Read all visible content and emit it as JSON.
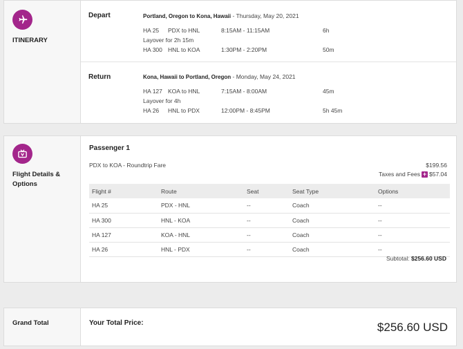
{
  "itinerary": {
    "label": "ITINERARY",
    "depart": {
      "title": "Depart",
      "route": "Portland, Oregon to Kona, Hawaii",
      "date": "Thursday, May 20, 2021",
      "flights": [
        {
          "code": "HA 25",
          "route": "PDX to HNL",
          "time": "8:15AM - 11:15AM",
          "duration": "6h"
        },
        {
          "code": "HA 300",
          "route": "HNL to KOA",
          "time": "1:30PM - 2:20PM",
          "duration": "50m"
        }
      ],
      "layover": "Layover for 2h 15m"
    },
    "return": {
      "title": "Return",
      "route": "Kona, Hawaii to Portland, Oregon",
      "date": "Monday, May 24, 2021",
      "flights": [
        {
          "code": "HA 127",
          "route": "KOA to HNL",
          "time": "7:15AM - 8:00AM",
          "duration": "45m"
        },
        {
          "code": "HA 26",
          "route": "HNL to PDX",
          "time": "12:00PM - 8:45PM",
          "duration": "5h 45m"
        }
      ],
      "layover": "Layover for 4h"
    }
  },
  "details": {
    "label_line1": "Flight Details &",
    "label_line2": "Options",
    "passenger": "Passenger 1",
    "fare_label": "PDX to KOA - Roundtrip Fare",
    "fare_amount": "$199.56",
    "taxes_label": "Taxes and Fees",
    "taxes_amount": "$57.04",
    "columns": [
      "Flight #",
      "Route",
      "Seat",
      "Seat Type",
      "Options"
    ],
    "rows": [
      [
        "HA 25",
        "PDX - HNL",
        "--",
        "Coach",
        "--"
      ],
      [
        "HA 300",
        "HNL - KOA",
        "--",
        "Coach",
        "--"
      ],
      [
        "HA 127",
        "KOA - HNL",
        "--",
        "Coach",
        "--"
      ],
      [
        "HA 26",
        "HNL - PDX",
        "--",
        "Coach",
        "--"
      ]
    ],
    "subtotal_label": "Subtotal:",
    "subtotal_amount": "$256.60 USD"
  },
  "grand_total": {
    "label": "Grand Total",
    "your_total_label": "Your Total Price:",
    "amount": "$256.60 USD"
  },
  "colors": {
    "accent": "#a3268b"
  },
  "icons": {
    "itinerary": "airplane-icon",
    "details": "seat-tv-icon",
    "taxes": "plus-icon"
  }
}
